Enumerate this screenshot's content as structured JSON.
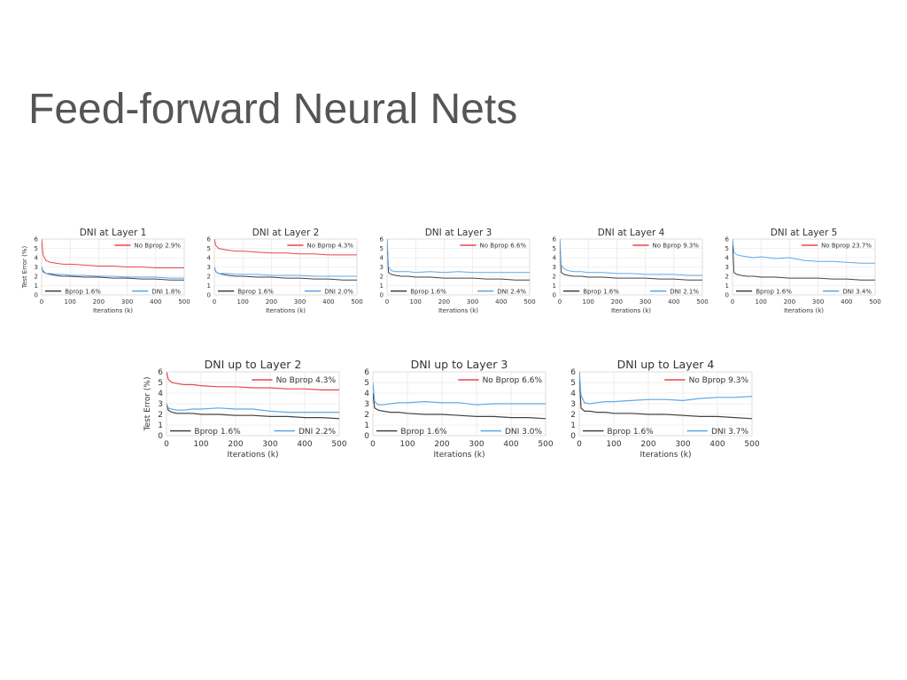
{
  "title": "Feed-forward Neural Nets",
  "chart_data": [
    {
      "type": "line",
      "title": "DNI at Layer 1",
      "xlabel": "Iterations (k)",
      "ylabel": "Test Error (%)",
      "x": [
        0,
        5,
        15,
        30,
        50,
        75,
        100,
        150,
        200,
        250,
        300,
        350,
        400,
        450,
        500
      ],
      "xlim": [
        0,
        500
      ],
      "xticks": [
        0,
        100,
        200,
        300,
        400,
        500
      ],
      "ylim": [
        0,
        6
      ],
      "yticks": [
        0,
        1,
        2,
        3,
        4,
        5,
        6
      ],
      "grid": true,
      "series": [
        {
          "name": "No Bprop 2.9%",
          "color": "#e8474f",
          "values": [
            6,
            4.3,
            3.7,
            3.5,
            3.4,
            3.3,
            3.3,
            3.2,
            3.1,
            3.1,
            3.0,
            3.0,
            2.9,
            2.9,
            2.9
          ]
        },
        {
          "name": "Bprop 1.6%",
          "color": "#444444",
          "values": [
            3,
            2.5,
            2.3,
            2.2,
            2.1,
            2.0,
            2.0,
            1.9,
            1.9,
            1.8,
            1.8,
            1.7,
            1.7,
            1.6,
            1.6
          ]
        },
        {
          "name": "DNI 1.8%",
          "color": "#5fa8e8",
          "values": [
            3,
            2.6,
            2.3,
            2.3,
            2.2,
            2.2,
            2.1,
            2.1,
            2.0,
            2.0,
            1.9,
            1.9,
            1.9,
            1.8,
            1.8
          ]
        }
      ]
    },
    {
      "type": "line",
      "title": "DNI at Layer 2",
      "xlabel": "Iterations (k)",
      "x": [
        0,
        5,
        15,
        30,
        50,
        75,
        100,
        150,
        200,
        250,
        300,
        350,
        400,
        450,
        500
      ],
      "xlim": [
        0,
        500
      ],
      "xticks": [
        0,
        100,
        200,
        300,
        400,
        500
      ],
      "ylim": [
        0,
        6
      ],
      "yticks": [
        0,
        1,
        2,
        3,
        4,
        5,
        6
      ],
      "grid": true,
      "series": [
        {
          "name": "No Bprop 4.3%",
          "color": "#e8474f",
          "values": [
            6,
            5.3,
            5.0,
            4.9,
            4.8,
            4.7,
            4.7,
            4.6,
            4.5,
            4.5,
            4.4,
            4.4,
            4.3,
            4.3,
            4.3
          ]
        },
        {
          "name": "Bprop 1.6%",
          "color": "#444444",
          "values": [
            3,
            2.5,
            2.3,
            2.2,
            2.1,
            2.0,
            2.0,
            1.9,
            1.9,
            1.8,
            1.8,
            1.7,
            1.7,
            1.6,
            1.6
          ]
        },
        {
          "name": "DNI 2.0%",
          "color": "#5fa8e8",
          "values": [
            3,
            2.5,
            2.3,
            2.3,
            2.3,
            2.2,
            2.2,
            2.2,
            2.1,
            2.1,
            2.1,
            2.0,
            2.0,
            2.0,
            2.0
          ]
        }
      ]
    },
    {
      "type": "line",
      "title": "DNI at Layer 3",
      "xlabel": "Iterations (k)",
      "x": [
        0,
        5,
        15,
        30,
        50,
        75,
        100,
        150,
        200,
        250,
        300,
        350,
        400,
        450,
        500
      ],
      "xlim": [
        0,
        500
      ],
      "xticks": [
        0,
        100,
        200,
        300,
        400,
        500
      ],
      "ylim": [
        0,
        6
      ],
      "yticks": [
        0,
        1,
        2,
        3,
        4,
        5,
        6
      ],
      "grid": true,
      "series": [
        {
          "name": "No Bprop 6.6%",
          "color": "#e8474f",
          "values": [
            null,
            null,
            null,
            null,
            null,
            null,
            null,
            null,
            null,
            null,
            null,
            null,
            null,
            null,
            null
          ]
        },
        {
          "name": "Bprop 1.6%",
          "color": "#444444",
          "values": [
            6,
            2.4,
            2.2,
            2.1,
            2.0,
            2.0,
            1.9,
            1.9,
            1.8,
            1.8,
            1.8,
            1.7,
            1.7,
            1.6,
            1.6
          ]
        },
        {
          "name": "DNI 2.4%",
          "color": "#5fa8e8",
          "values": [
            6,
            3.0,
            2.6,
            2.5,
            2.5,
            2.5,
            2.4,
            2.5,
            2.4,
            2.5,
            2.4,
            2.4,
            2.4,
            2.4,
            2.4
          ]
        }
      ]
    },
    {
      "type": "line",
      "title": "DNI at Layer 4",
      "xlabel": "Iterations (k)",
      "x": [
        0,
        5,
        15,
        30,
        50,
        75,
        100,
        150,
        200,
        250,
        300,
        350,
        400,
        450,
        500
      ],
      "xlim": [
        0,
        500
      ],
      "xticks": [
        0,
        100,
        200,
        300,
        400,
        500
      ],
      "ylim": [
        0,
        6
      ],
      "yticks": [
        0,
        1,
        2,
        3,
        4,
        5,
        6
      ],
      "grid": true,
      "series": [
        {
          "name": "No Bprop 9.3%",
          "color": "#e8474f",
          "values": [
            null,
            null,
            null,
            null,
            null,
            null,
            null,
            null,
            null,
            null,
            null,
            null,
            null,
            null,
            null
          ]
        },
        {
          "name": "Bprop 1.6%",
          "color": "#444444",
          "values": [
            6,
            2.4,
            2.2,
            2.1,
            2.0,
            2.0,
            1.9,
            1.9,
            1.8,
            1.8,
            1.8,
            1.7,
            1.7,
            1.6,
            1.6
          ]
        },
        {
          "name": "DNI 2.1%",
          "color": "#5fa8e8",
          "values": [
            6,
            3.2,
            2.8,
            2.6,
            2.5,
            2.5,
            2.4,
            2.4,
            2.3,
            2.3,
            2.2,
            2.2,
            2.2,
            2.1,
            2.1
          ]
        }
      ]
    },
    {
      "type": "line",
      "title": "DNI at Layer 5",
      "xlabel": "Iterations (k)",
      "x": [
        0,
        5,
        15,
        30,
        50,
        75,
        100,
        150,
        200,
        250,
        300,
        350,
        400,
        450,
        500
      ],
      "xlim": [
        0,
        500
      ],
      "xticks": [
        0,
        100,
        200,
        300,
        400,
        500
      ],
      "ylim": [
        0,
        6
      ],
      "yticks": [
        0,
        1,
        2,
        3,
        4,
        5,
        6
      ],
      "grid": true,
      "series": [
        {
          "name": "No Bprop 23.7%",
          "color": "#e8474f",
          "values": [
            null,
            null,
            null,
            null,
            null,
            null,
            null,
            null,
            null,
            null,
            null,
            null,
            null,
            null,
            null
          ]
        },
        {
          "name": "Bprop 1.6%",
          "color": "#444444",
          "values": [
            6,
            2.4,
            2.2,
            2.1,
            2.0,
            2.0,
            1.9,
            1.9,
            1.8,
            1.8,
            1.8,
            1.7,
            1.7,
            1.6,
            1.6
          ]
        },
        {
          "name": "DNI 3.4%",
          "color": "#5fa8e8",
          "values": [
            6,
            4.6,
            4.3,
            4.2,
            4.1,
            4.0,
            4.1,
            3.9,
            4.0,
            3.7,
            3.6,
            3.6,
            3.5,
            3.4,
            3.4
          ]
        }
      ]
    },
    {
      "type": "line",
      "title": "DNI up to Layer 2",
      "xlabel": "Iterations (k)",
      "ylabel": "Test Error (%)",
      "x": [
        0,
        5,
        15,
        30,
        50,
        75,
        100,
        150,
        200,
        250,
        300,
        350,
        400,
        450,
        500
      ],
      "xlim": [
        0,
        500
      ],
      "xticks": [
        0,
        100,
        200,
        300,
        400,
        500
      ],
      "ylim": [
        0,
        6
      ],
      "yticks": [
        0,
        1,
        2,
        3,
        4,
        5,
        6
      ],
      "grid": true,
      "series": [
        {
          "name": "No Bprop 4.3%",
          "color": "#e8474f",
          "values": [
            6,
            5.3,
            5.0,
            4.9,
            4.8,
            4.8,
            4.7,
            4.6,
            4.6,
            4.5,
            4.5,
            4.4,
            4.4,
            4.3,
            4.3
          ]
        },
        {
          "name": "Bprop 1.6%",
          "color": "#444444",
          "values": [
            3,
            2.4,
            2.2,
            2.1,
            2.1,
            2.1,
            2.0,
            2.0,
            1.9,
            1.9,
            1.8,
            1.8,
            1.7,
            1.7,
            1.6
          ]
        },
        {
          "name": "DNI 2.2%",
          "color": "#5fa8e8",
          "values": [
            3,
            2.6,
            2.5,
            2.4,
            2.4,
            2.5,
            2.5,
            2.6,
            2.5,
            2.5,
            2.3,
            2.2,
            2.2,
            2.2,
            2.2
          ]
        }
      ]
    },
    {
      "type": "line",
      "title": "DNI up to Layer 3",
      "xlabel": "Iterations (k)",
      "x": [
        0,
        5,
        15,
        30,
        50,
        75,
        100,
        150,
        200,
        250,
        300,
        350,
        400,
        450,
        500
      ],
      "xlim": [
        0,
        500
      ],
      "xticks": [
        0,
        100,
        200,
        300,
        400,
        500
      ],
      "ylim": [
        0,
        6
      ],
      "yticks": [
        0,
        1,
        2,
        3,
        4,
        5,
        6
      ],
      "grid": true,
      "series": [
        {
          "name": "No Bprop 6.6%",
          "color": "#e8474f",
          "values": [
            null,
            null,
            null,
            null,
            null,
            null,
            null,
            null,
            null,
            null,
            null,
            null,
            null,
            null,
            null
          ]
        },
        {
          "name": "Bprop 1.6%",
          "color": "#444444",
          "values": [
            4,
            2.6,
            2.4,
            2.3,
            2.2,
            2.2,
            2.1,
            2.0,
            2.0,
            1.9,
            1.8,
            1.8,
            1.7,
            1.7,
            1.6
          ]
        },
        {
          "name": "DNI 3.0%",
          "color": "#5fa8e8",
          "values": [
            5,
            3.2,
            2.9,
            2.9,
            3.0,
            3.1,
            3.1,
            3.2,
            3.1,
            3.1,
            2.9,
            3.0,
            3.0,
            3.0,
            3.0
          ]
        }
      ]
    },
    {
      "type": "line",
      "title": "DNI up to Layer 4",
      "xlabel": "Iterations (k)",
      "x": [
        0,
        5,
        15,
        30,
        50,
        75,
        100,
        150,
        200,
        250,
        300,
        350,
        400,
        450,
        500
      ],
      "xlim": [
        0,
        500
      ],
      "xticks": [
        0,
        100,
        200,
        300,
        400,
        500
      ],
      "ylim": [
        0,
        6
      ],
      "yticks": [
        0,
        1,
        2,
        3,
        4,
        5,
        6
      ],
      "grid": true,
      "series": [
        {
          "name": "No Bprop 9.3%",
          "color": "#e8474f",
          "values": [
            null,
            null,
            null,
            null,
            null,
            null,
            null,
            null,
            null,
            null,
            null,
            null,
            null,
            null,
            null
          ]
        },
        {
          "name": "Bprop 1.6%",
          "color": "#444444",
          "values": [
            6,
            2.6,
            2.3,
            2.3,
            2.2,
            2.2,
            2.1,
            2.1,
            2.0,
            2.0,
            1.9,
            1.8,
            1.8,
            1.7,
            1.6
          ]
        },
        {
          "name": "DNI 3.7%",
          "color": "#5fa8e8",
          "values": [
            6,
            3.8,
            3.1,
            3.0,
            3.1,
            3.2,
            3.2,
            3.3,
            3.4,
            3.4,
            3.3,
            3.5,
            3.6,
            3.6,
            3.7
          ]
        }
      ]
    }
  ]
}
